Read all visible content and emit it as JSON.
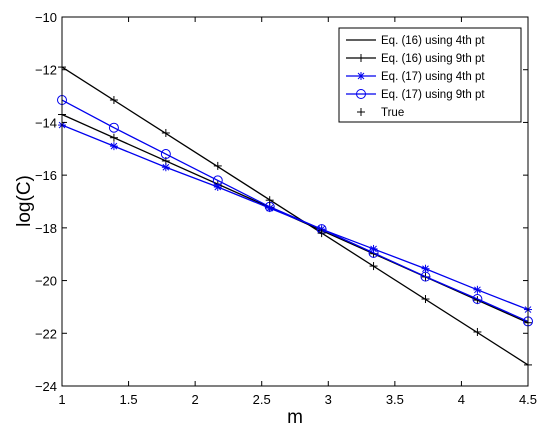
{
  "chart_data": {
    "type": "line",
    "xlabel": "m",
    "ylabel": "log(C)",
    "xlim": [
      1,
      4.5
    ],
    "ylim": [
      -24,
      -10
    ],
    "xticks": [
      1,
      1.5,
      2,
      2.5,
      3,
      3.5,
      4,
      4.5
    ],
    "xtick_labels": [
      "1",
      "1.5",
      "2",
      "2.5",
      "3",
      "3.5",
      "4",
      "4.5"
    ],
    "yticks": [
      -24,
      -22,
      -20,
      -18,
      -16,
      -14,
      -12,
      -10
    ],
    "ytick_labels": [
      "−24",
      "−22",
      "−20",
      "−18",
      "−16",
      "−14",
      "−12",
      "−10"
    ],
    "grid": false,
    "legend_position": "top-right",
    "x_markers": [
      1.0,
      1.39,
      1.78,
      2.17,
      2.56,
      2.95,
      3.34,
      3.73,
      4.12,
      4.5
    ],
    "series": [
      {
        "name": "Eq. (16) using 4th pt",
        "color": "#000000",
        "marker": "none",
        "line": true,
        "x": [
          1,
          4.5
        ],
        "y": [
          -11.9,
          -23.2
        ]
      },
      {
        "name": "Eq. (16) using 9th pt",
        "color": "#000000",
        "marker": "none",
        "line": true,
        "x": [
          1,
          4.5
        ],
        "y": [
          -13.7,
          -21.6
        ]
      },
      {
        "name": "Eq. (17) using 4th pt",
        "color": "#0000ee",
        "marker": "star",
        "line": true,
        "x": [
          1.0,
          1.39,
          1.78,
          2.17,
          2.56,
          2.95,
          3.34,
          3.73,
          4.12,
          4.5
        ],
        "y": [
          -14.1,
          -14.9,
          -15.7,
          -16.45,
          -17.25,
          -18.05,
          -18.8,
          -19.55,
          -20.35,
          -21.1
        ]
      },
      {
        "name": "Eq. (17) using 9th pt",
        "color": "#0000ee",
        "marker": "circle",
        "line": true,
        "x": [
          1.0,
          1.39,
          1.78,
          2.17,
          2.56,
          2.95,
          3.34,
          3.73,
          4.12,
          4.5
        ],
        "y": [
          -13.15,
          -14.2,
          -15.2,
          -16.2,
          -17.2,
          -18.05,
          -18.95,
          -19.85,
          -20.7,
          -21.55
        ]
      },
      {
        "name": "True",
        "color": "#000000",
        "marker": "plus",
        "line": false,
        "x": [
          1.0,
          1.39,
          1.78,
          2.17,
          2.56,
          2.95,
          3.34,
          3.73,
          4.12,
          4.5
        ],
        "y": [
          -11.9,
          -13.15,
          -14.4,
          -15.65,
          -16.95,
          -18.2,
          -19.45,
          -20.7,
          -21.95,
          -23.2
        ]
      }
    ]
  }
}
